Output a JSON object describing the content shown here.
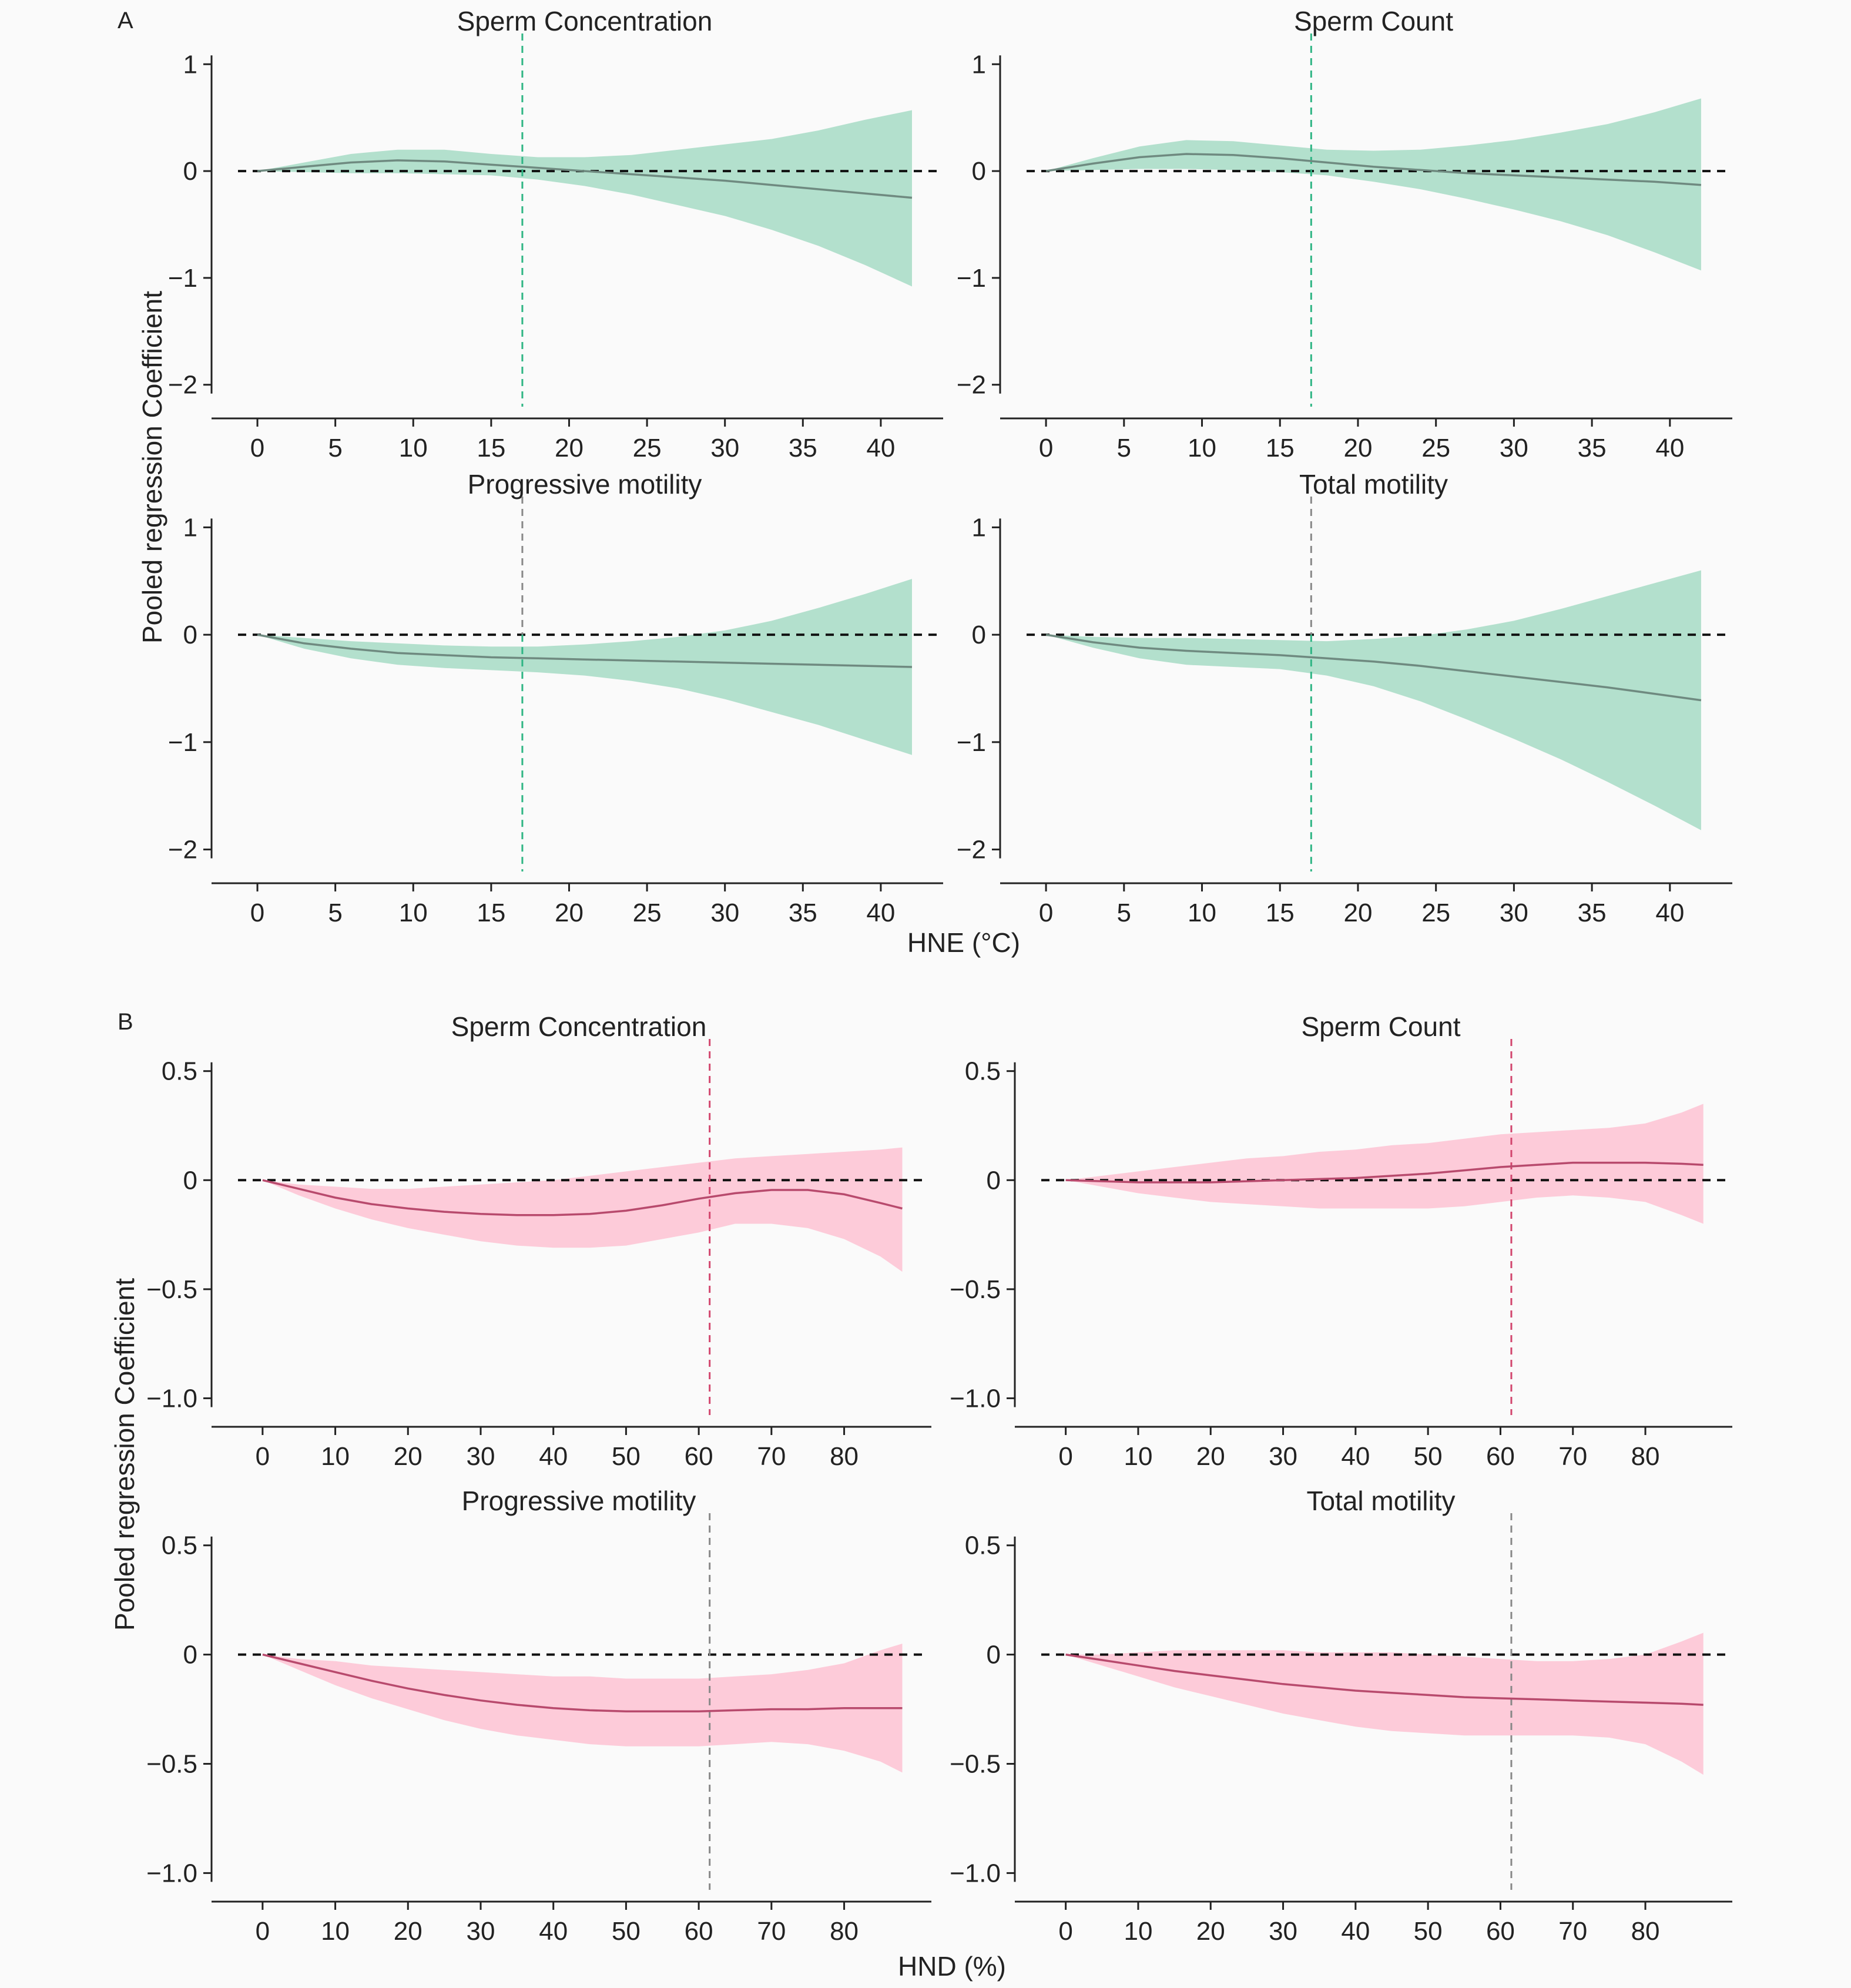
{
  "figure": {
    "panel_a_label": "A",
    "panel_b_label": "B",
    "ylabel": "Pooled regression Coefficient",
    "panel_a_xlabel": "HNE (°C)",
    "panel_b_xlabel": "HND (%)"
  },
  "colors": {
    "green_band": "#b3e0cd",
    "green_vline": "#2fb584",
    "pink_band": "#fdcbd9",
    "pink_vline": "#d2466e",
    "gray_vline": "#888888",
    "line_gray": "#6f8a80",
    "line_pink": "#b84a6d"
  },
  "chart_data": [
    {
      "type": "area",
      "panel": "A",
      "title": "Sperm Concentration",
      "xlim": [
        -2,
        44
      ],
      "ylim": [
        -2.15,
        1.15
      ],
      "xticks": [
        0,
        5,
        10,
        15,
        20,
        25,
        30,
        35,
        40
      ],
      "yticks": [
        1,
        0,
        -1,
        -2
      ],
      "ytick_labels": [
        "1",
        "0",
        "−1",
        "−2"
      ],
      "vline": 17,
      "vline_style": "green",
      "band_color": "green",
      "x": [
        0,
        3,
        6,
        9,
        12,
        15,
        18,
        21,
        24,
        27,
        30,
        33,
        36,
        39,
        42
      ],
      "y": [
        0,
        0.04,
        0.08,
        0.1,
        0.09,
        0.06,
        0.03,
        0,
        -0.03,
        -0.06,
        -0.09,
        -0.13,
        -0.17,
        -0.21,
        -0.25
      ],
      "lower": [
        0,
        -0.01,
        -0.02,
        -0.02,
        -0.03,
        -0.04,
        -0.08,
        -0.14,
        -0.22,
        -0.32,
        -0.42,
        -0.55,
        -0.7,
        -0.88,
        -1.08
      ],
      "upper": [
        0,
        0.08,
        0.16,
        0.2,
        0.2,
        0.16,
        0.13,
        0.13,
        0.15,
        0.2,
        0.25,
        0.3,
        0.38,
        0.48,
        0.57
      ]
    },
    {
      "type": "area",
      "panel": "A",
      "title": "Sperm Count",
      "xlim": [
        -2,
        44
      ],
      "ylim": [
        -2.15,
        1.15
      ],
      "xticks": [
        0,
        5,
        10,
        15,
        20,
        25,
        30,
        35,
        40
      ],
      "yticks": [
        1,
        0,
        -1,
        -2
      ],
      "ytick_labels": [
        "1",
        "0",
        "−1",
        "−2"
      ],
      "vline": 17,
      "vline_style": "green",
      "band_color": "green",
      "x": [
        0,
        3,
        6,
        9,
        12,
        15,
        18,
        21,
        24,
        27,
        30,
        33,
        36,
        39,
        42
      ],
      "y": [
        0,
        0.07,
        0.13,
        0.16,
        0.15,
        0.12,
        0.08,
        0.04,
        0.01,
        -0.02,
        -0.04,
        -0.06,
        -0.08,
        -0.1,
        -0.13
      ],
      "lower": [
        0,
        0.01,
        0.02,
        0.02,
        0.01,
        -0.01,
        -0.04,
        -0.1,
        -0.17,
        -0.26,
        -0.36,
        -0.47,
        -0.6,
        -0.76,
        -0.93
      ],
      "upper": [
        0,
        0.12,
        0.23,
        0.29,
        0.28,
        0.24,
        0.2,
        0.19,
        0.2,
        0.24,
        0.29,
        0.36,
        0.44,
        0.55,
        0.68
      ]
    },
    {
      "type": "area",
      "panel": "A",
      "title": "Progressive motility",
      "xlim": [
        -2,
        44
      ],
      "ylim": [
        -2.15,
        1.15
      ],
      "xticks": [
        0,
        5,
        10,
        15,
        20,
        25,
        30,
        35,
        40
      ],
      "yticks": [
        1,
        0,
        -1,
        -2
      ],
      "ytick_labels": [
        "1",
        "0",
        "−1",
        "−2"
      ],
      "vline": 17,
      "vline_style": "gray-green",
      "band_color": "green",
      "x": [
        0,
        3,
        6,
        9,
        12,
        15,
        18,
        21,
        24,
        27,
        30,
        33,
        36,
        39,
        42
      ],
      "y": [
        0,
        -0.08,
        -0.13,
        -0.17,
        -0.19,
        -0.21,
        -0.22,
        -0.23,
        -0.24,
        -0.25,
        -0.26,
        -0.27,
        -0.28,
        -0.29,
        -0.3
      ],
      "lower": [
        0,
        -0.13,
        -0.22,
        -0.28,
        -0.31,
        -0.33,
        -0.35,
        -0.38,
        -0.43,
        -0.5,
        -0.6,
        -0.72,
        -0.84,
        -0.98,
        -1.12
      ],
      "upper": [
        0,
        -0.03,
        -0.06,
        -0.08,
        -0.1,
        -0.11,
        -0.11,
        -0.09,
        -0.06,
        -0.02,
        0.04,
        0.13,
        0.25,
        0.38,
        0.52
      ]
    },
    {
      "type": "area",
      "panel": "A",
      "title": "Total motility",
      "xlim": [
        -2,
        44
      ],
      "ylim": [
        -2.15,
        1.15
      ],
      "xticks": [
        0,
        5,
        10,
        15,
        20,
        25,
        30,
        35,
        40
      ],
      "yticks": [
        1,
        0,
        -1,
        -2
      ],
      "ytick_labels": [
        "1",
        "0",
        "−1",
        "−2"
      ],
      "vline": 17,
      "vline_style": "gray-green",
      "band_color": "green",
      "x": [
        0,
        3,
        6,
        9,
        12,
        15,
        18,
        21,
        24,
        27,
        30,
        33,
        36,
        39,
        42
      ],
      "y": [
        0,
        -0.07,
        -0.12,
        -0.15,
        -0.17,
        -0.19,
        -0.22,
        -0.25,
        -0.29,
        -0.34,
        -0.39,
        -0.44,
        -0.49,
        -0.55,
        -0.61
      ],
      "lower": [
        0,
        -0.12,
        -0.22,
        -0.28,
        -0.3,
        -0.32,
        -0.38,
        -0.48,
        -0.62,
        -0.79,
        -0.97,
        -1.16,
        -1.37,
        -1.59,
        -1.82
      ],
      "upper": [
        0,
        -0.02,
        -0.03,
        -0.03,
        -0.04,
        -0.05,
        -0.06,
        -0.04,
        -0.01,
        0.05,
        0.13,
        0.24,
        0.36,
        0.48,
        0.6
      ]
    },
    {
      "type": "area",
      "panel": "B",
      "title": "Sperm Concentration",
      "xlim": [
        -5,
        92
      ],
      "ylim": [
        -1.05,
        0.58
      ],
      "xticks": [
        0,
        10,
        20,
        30,
        40,
        50,
        60,
        70,
        80
      ],
      "yticks": [
        0.5,
        0,
        -0.5,
        -1.0
      ],
      "ytick_labels": [
        "0.5",
        "0",
        "−0.5",
        "−1.0"
      ],
      "vline": 61.5,
      "vline_style": "pink",
      "band_color": "pink",
      "x": [
        0,
        5,
        10,
        15,
        20,
        25,
        30,
        35,
        40,
        45,
        50,
        55,
        60,
        65,
        70,
        75,
        80,
        85,
        88
      ],
      "y": [
        0,
        -0.04,
        -0.08,
        -0.11,
        -0.13,
        -0.145,
        -0.155,
        -0.16,
        -0.16,
        -0.155,
        -0.14,
        -0.115,
        -0.085,
        -0.06,
        -0.045,
        -0.045,
        -0.065,
        -0.105,
        -0.13
      ],
      "lower": [
        0,
        -0.07,
        -0.13,
        -0.18,
        -0.22,
        -0.25,
        -0.28,
        -0.3,
        -0.31,
        -0.31,
        -0.3,
        -0.27,
        -0.24,
        -0.2,
        -0.2,
        -0.22,
        -0.27,
        -0.35,
        -0.42
      ],
      "upper": [
        0,
        -0.02,
        -0.03,
        -0.04,
        -0.04,
        -0.03,
        -0.02,
        -0.01,
        0,
        0.02,
        0.04,
        0.06,
        0.08,
        0.1,
        0.11,
        0.12,
        0.13,
        0.14,
        0.15
      ]
    },
    {
      "type": "area",
      "panel": "B",
      "title": "Sperm Count",
      "xlim": [
        -5,
        92
      ],
      "ylim": [
        -1.05,
        0.58
      ],
      "xticks": [
        0,
        10,
        20,
        30,
        40,
        50,
        60,
        70,
        80
      ],
      "yticks": [
        0.5,
        0,
        -0.5,
        -1.0
      ],
      "ytick_labels": [
        "0.5",
        "0",
        "−0.5",
        "−1.0"
      ],
      "vline": 61.5,
      "vline_style": "pink",
      "band_color": "pink",
      "x": [
        0,
        5,
        10,
        15,
        20,
        25,
        30,
        35,
        40,
        45,
        50,
        55,
        60,
        65,
        70,
        75,
        80,
        85,
        88
      ],
      "y": [
        0,
        -0.005,
        -0.01,
        -0.01,
        -0.01,
        -0.005,
        0,
        0.005,
        0.01,
        0.02,
        0.03,
        0.045,
        0.06,
        0.07,
        0.08,
        0.08,
        0.08,
        0.075,
        0.07
      ],
      "lower": [
        0,
        -0.03,
        -0.06,
        -0.08,
        -0.1,
        -0.11,
        -0.12,
        -0.13,
        -0.13,
        -0.13,
        -0.13,
        -0.12,
        -0.1,
        -0.08,
        -0.07,
        -0.08,
        -0.1,
        -0.16,
        -0.2
      ],
      "upper": [
        0,
        0.02,
        0.04,
        0.06,
        0.08,
        0.1,
        0.11,
        0.13,
        0.14,
        0.16,
        0.17,
        0.19,
        0.21,
        0.22,
        0.23,
        0.24,
        0.26,
        0.31,
        0.35
      ]
    },
    {
      "type": "area",
      "panel": "B",
      "title": "Progressive motility",
      "xlim": [
        -5,
        92
      ],
      "ylim": [
        -1.05,
        0.58
      ],
      "xticks": [
        0,
        10,
        20,
        30,
        40,
        50,
        60,
        70,
        80
      ],
      "yticks": [
        0.5,
        0,
        -0.5,
        -1.0
      ],
      "ytick_labels": [
        "0.5",
        "0",
        "−0.5",
        "−1.0"
      ],
      "vline": 61.5,
      "vline_style": "gray",
      "band_color": "pink",
      "x": [
        0,
        5,
        10,
        15,
        20,
        25,
        30,
        35,
        40,
        45,
        50,
        55,
        60,
        65,
        70,
        75,
        80,
        85,
        88
      ],
      "y": [
        0,
        -0.04,
        -0.08,
        -0.12,
        -0.155,
        -0.185,
        -0.21,
        -0.23,
        -0.245,
        -0.255,
        -0.26,
        -0.26,
        -0.26,
        -0.255,
        -0.25,
        -0.25,
        -0.245,
        -0.245,
        -0.245
      ],
      "lower": [
        0,
        -0.07,
        -0.14,
        -0.2,
        -0.25,
        -0.3,
        -0.34,
        -0.37,
        -0.39,
        -0.41,
        -0.42,
        -0.42,
        -0.42,
        -0.41,
        -0.4,
        -0.41,
        -0.44,
        -0.49,
        -0.54
      ],
      "upper": [
        0,
        -0.02,
        -0.03,
        -0.05,
        -0.06,
        -0.07,
        -0.08,
        -0.09,
        -0.1,
        -0.1,
        -0.11,
        -0.11,
        -0.11,
        -0.1,
        -0.09,
        -0.07,
        -0.04,
        0.02,
        0.05
      ]
    },
    {
      "type": "area",
      "panel": "B",
      "title": "Total motility",
      "xlim": [
        -5,
        92
      ],
      "ylim": [
        -1.05,
        0.58
      ],
      "xticks": [
        0,
        10,
        20,
        30,
        40,
        50,
        60,
        70,
        80
      ],
      "yticks": [
        0.5,
        0,
        -0.5,
        -1.0
      ],
      "ytick_labels": [
        "0.5",
        "0",
        "−0.5",
        "−1.0"
      ],
      "vline": 61.5,
      "vline_style": "gray",
      "band_color": "pink",
      "x": [
        0,
        5,
        10,
        15,
        20,
        25,
        30,
        35,
        40,
        45,
        50,
        55,
        60,
        65,
        70,
        75,
        80,
        85,
        88
      ],
      "y": [
        0,
        -0.025,
        -0.05,
        -0.075,
        -0.095,
        -0.115,
        -0.135,
        -0.15,
        -0.165,
        -0.175,
        -0.185,
        -0.195,
        -0.2,
        -0.205,
        -0.21,
        -0.215,
        -0.22,
        -0.225,
        -0.23
      ],
      "lower": [
        0,
        -0.05,
        -0.1,
        -0.15,
        -0.19,
        -0.23,
        -0.27,
        -0.3,
        -0.33,
        -0.35,
        -0.36,
        -0.37,
        -0.37,
        -0.37,
        -0.37,
        -0.38,
        -0.41,
        -0.49,
        -0.55
      ],
      "upper": [
        0,
        0,
        0.01,
        0.02,
        0.02,
        0.02,
        0.02,
        0.01,
        0.01,
        0.01,
        0,
        -0.01,
        -0.02,
        -0.03,
        -0.03,
        -0.02,
        0,
        0.06,
        0.1
      ]
    }
  ]
}
